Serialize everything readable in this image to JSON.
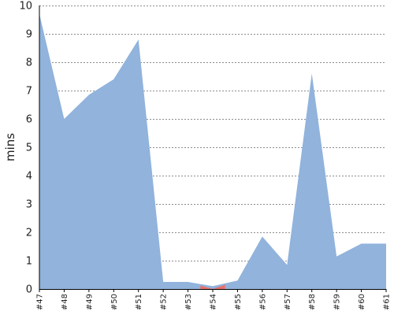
{
  "chart_data": {
    "type": "area",
    "ylabel": "mins",
    "xlabel": "",
    "title": "",
    "ylim": [
      0,
      10
    ],
    "yticks": [
      "0",
      "1",
      "2",
      "3",
      "4",
      "5",
      "6",
      "7",
      "8",
      "9",
      "10"
    ],
    "grid": true,
    "categories": [
      "#47",
      "#48",
      "#49",
      "#50",
      "#51",
      "#52",
      "#53",
      "#54",
      "#55",
      "#56",
      "#57",
      "#58",
      "#59",
      "#60",
      "#61"
    ],
    "series": [
      {
        "values": [
          9.7,
          6.0,
          6.85,
          7.4,
          8.8,
          0.25,
          0.25,
          0.1,
          0.3,
          1.85,
          0.85,
          7.6,
          1.15,
          1.6,
          1.6
        ]
      }
    ],
    "highlight_segment": {
      "from": "#53",
      "to": "#55",
      "values": [
        0.12,
        0.0,
        0.15
      ]
    },
    "colors": {
      "fill": "#91b3dc",
      "highlight": "#e8716b",
      "grid": "#8c8c8c",
      "axis": "#000000"
    }
  }
}
